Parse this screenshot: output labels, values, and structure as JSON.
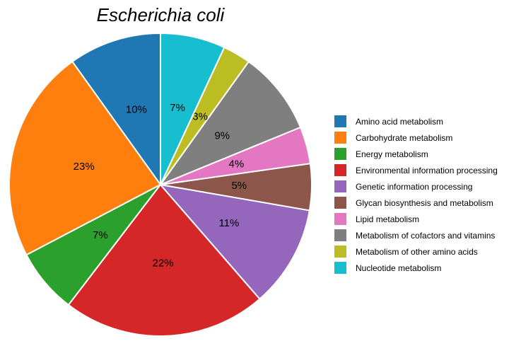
{
  "chart_data": {
    "type": "pie",
    "title": "Escherichia coli",
    "legend_position": "right",
    "start_angle_deg": 90,
    "direction": "counterclockwise",
    "percent_labels_shown": true,
    "background": "#ffffff",
    "text_color": "#000000",
    "wedge_border_color": "#ffffff",
    "slices": [
      {
        "label": "Amino acid metabolism",
        "percent": 10,
        "pct_label": "10%",
        "color": "#1f77b4"
      },
      {
        "label": "Carbohydrate metabolism",
        "percent": 23,
        "pct_label": "23%",
        "color": "#ff7f0e"
      },
      {
        "label": "Energy metabolism",
        "percent": 7,
        "pct_label": "7%",
        "color": "#2ca02c"
      },
      {
        "label": "Environmental information processing",
        "percent": 22,
        "pct_label": "22%",
        "color": "#d62728"
      },
      {
        "label": "Genetic information processing",
        "percent": 11,
        "pct_label": "11%",
        "color": "#9467bd"
      },
      {
        "label": "Glycan biosynthesis and metabolism",
        "percent": 5,
        "pct_label": "5%",
        "color": "#8c564b"
      },
      {
        "label": "Lipid metabolism",
        "percent": 4,
        "pct_label": "4%",
        "color": "#e377c2"
      },
      {
        "label": "Metabolism of cofactors and vitamins",
        "percent": 9,
        "pct_label": "9%",
        "color": "#7f7f7f"
      },
      {
        "label": "Metabolism of other amino acids",
        "percent": 3,
        "pct_label": "3%",
        "color": "#bcbd22"
      },
      {
        "label": "Nucleotide metabolism",
        "percent": 7,
        "pct_label": "7%",
        "color": "#17becf"
      }
    ]
  }
}
